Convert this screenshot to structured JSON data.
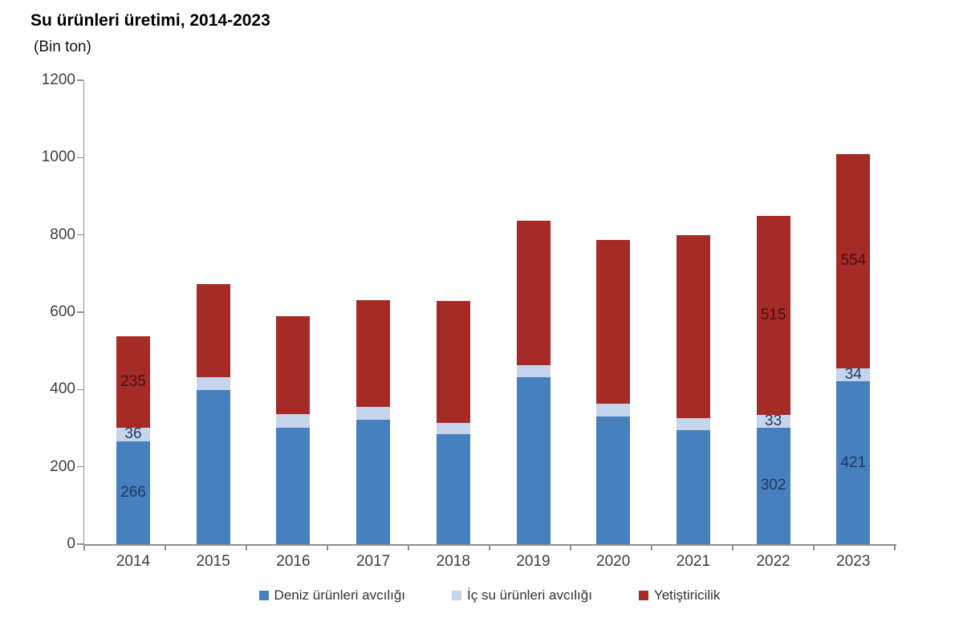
{
  "title": "Su ürünleri üretimi, 2014-2023",
  "subtitle": "(Bin ton)",
  "chart_data": {
    "type": "bar",
    "stacked": true,
    "title": "Su ürünleri üretimi, 2014-2023",
    "units_label": "(Bin ton)",
    "categories": [
      "2014",
      "2015",
      "2016",
      "2017",
      "2018",
      "2019",
      "2020",
      "2021",
      "2022",
      "2023"
    ],
    "series": [
      {
        "name": "Deniz ürünleri avcılığı",
        "color": "#4680BE",
        "label_color": "#1F3864",
        "values": [
          266,
          398,
          302,
          322,
          284,
          432,
          331,
          295,
          302,
          421
        ]
      },
      {
        "name": "İç su ürünleri avcılığı",
        "color": "#C6D5EB",
        "label_color": "#1F3864",
        "values": [
          36,
          34,
          34,
          32,
          30,
          32,
          33,
          30,
          33,
          34
        ]
      },
      {
        "name": "Yetiştiricilik",
        "color": "#A62B26",
        "label_color": "#471210",
        "values": [
          235,
          240,
          253,
          277,
          315,
          373,
          422,
          475,
          515,
          554
        ]
      }
    ],
    "data_labels": {
      "labeled_categories": [
        "2014",
        "2022",
        "2023"
      ],
      "shown_values": {
        "2014": [
          266,
          36,
          235
        ],
        "2022": [
          302,
          33,
          515
        ],
        "2023": [
          421,
          34,
          554
        ]
      }
    },
    "ylim": [
      0,
      1200
    ],
    "y_ticks": [
      0,
      200,
      400,
      600,
      800,
      1000,
      1200
    ],
    "grid": false,
    "legend_position": "bottom"
  },
  "style_colors": {
    "axis": "#8f8f8f",
    "tick_text": "#3d3d3d",
    "legend_text": "#333333",
    "background": "#ffffff"
  }
}
